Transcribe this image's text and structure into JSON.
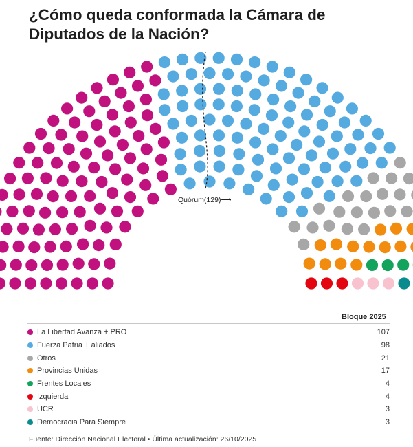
{
  "title": "¿Cómo queda conformada la Cámara de Diputados de la Nación?",
  "quorum_label": "Quórum(129)⟶",
  "chart_data": {
    "type": "parliament",
    "total_seats": 257,
    "quorum": 129,
    "value_header": "Bloque 2025",
    "series": [
      {
        "name": "La Libertad Avanza + PRO",
        "value": 107,
        "color": "#c0117f"
      },
      {
        "name": "Fuerza Patria + aliados",
        "value": 98,
        "color": "#55aae0"
      },
      {
        "name": "Otros",
        "value": 21,
        "color": "#a7a7a7"
      },
      {
        "name": "Provincias Unidas",
        "value": 17,
        "color": "#f28c0f"
      },
      {
        "name": "Frentes Locales",
        "value": 4,
        "color": "#13a35c"
      },
      {
        "name": "Izquierda",
        "value": 4,
        "color": "#e3050f"
      },
      {
        "name": "UCR",
        "value": 3,
        "color": "#f8c3cf"
      },
      {
        "name": "Democracia Para Siempre",
        "value": 3,
        "color": "#0a8c8f"
      }
    ]
  },
  "source": "Fuente: Dirección Nacional Electoral • Última actualización: 26/10/2025"
}
